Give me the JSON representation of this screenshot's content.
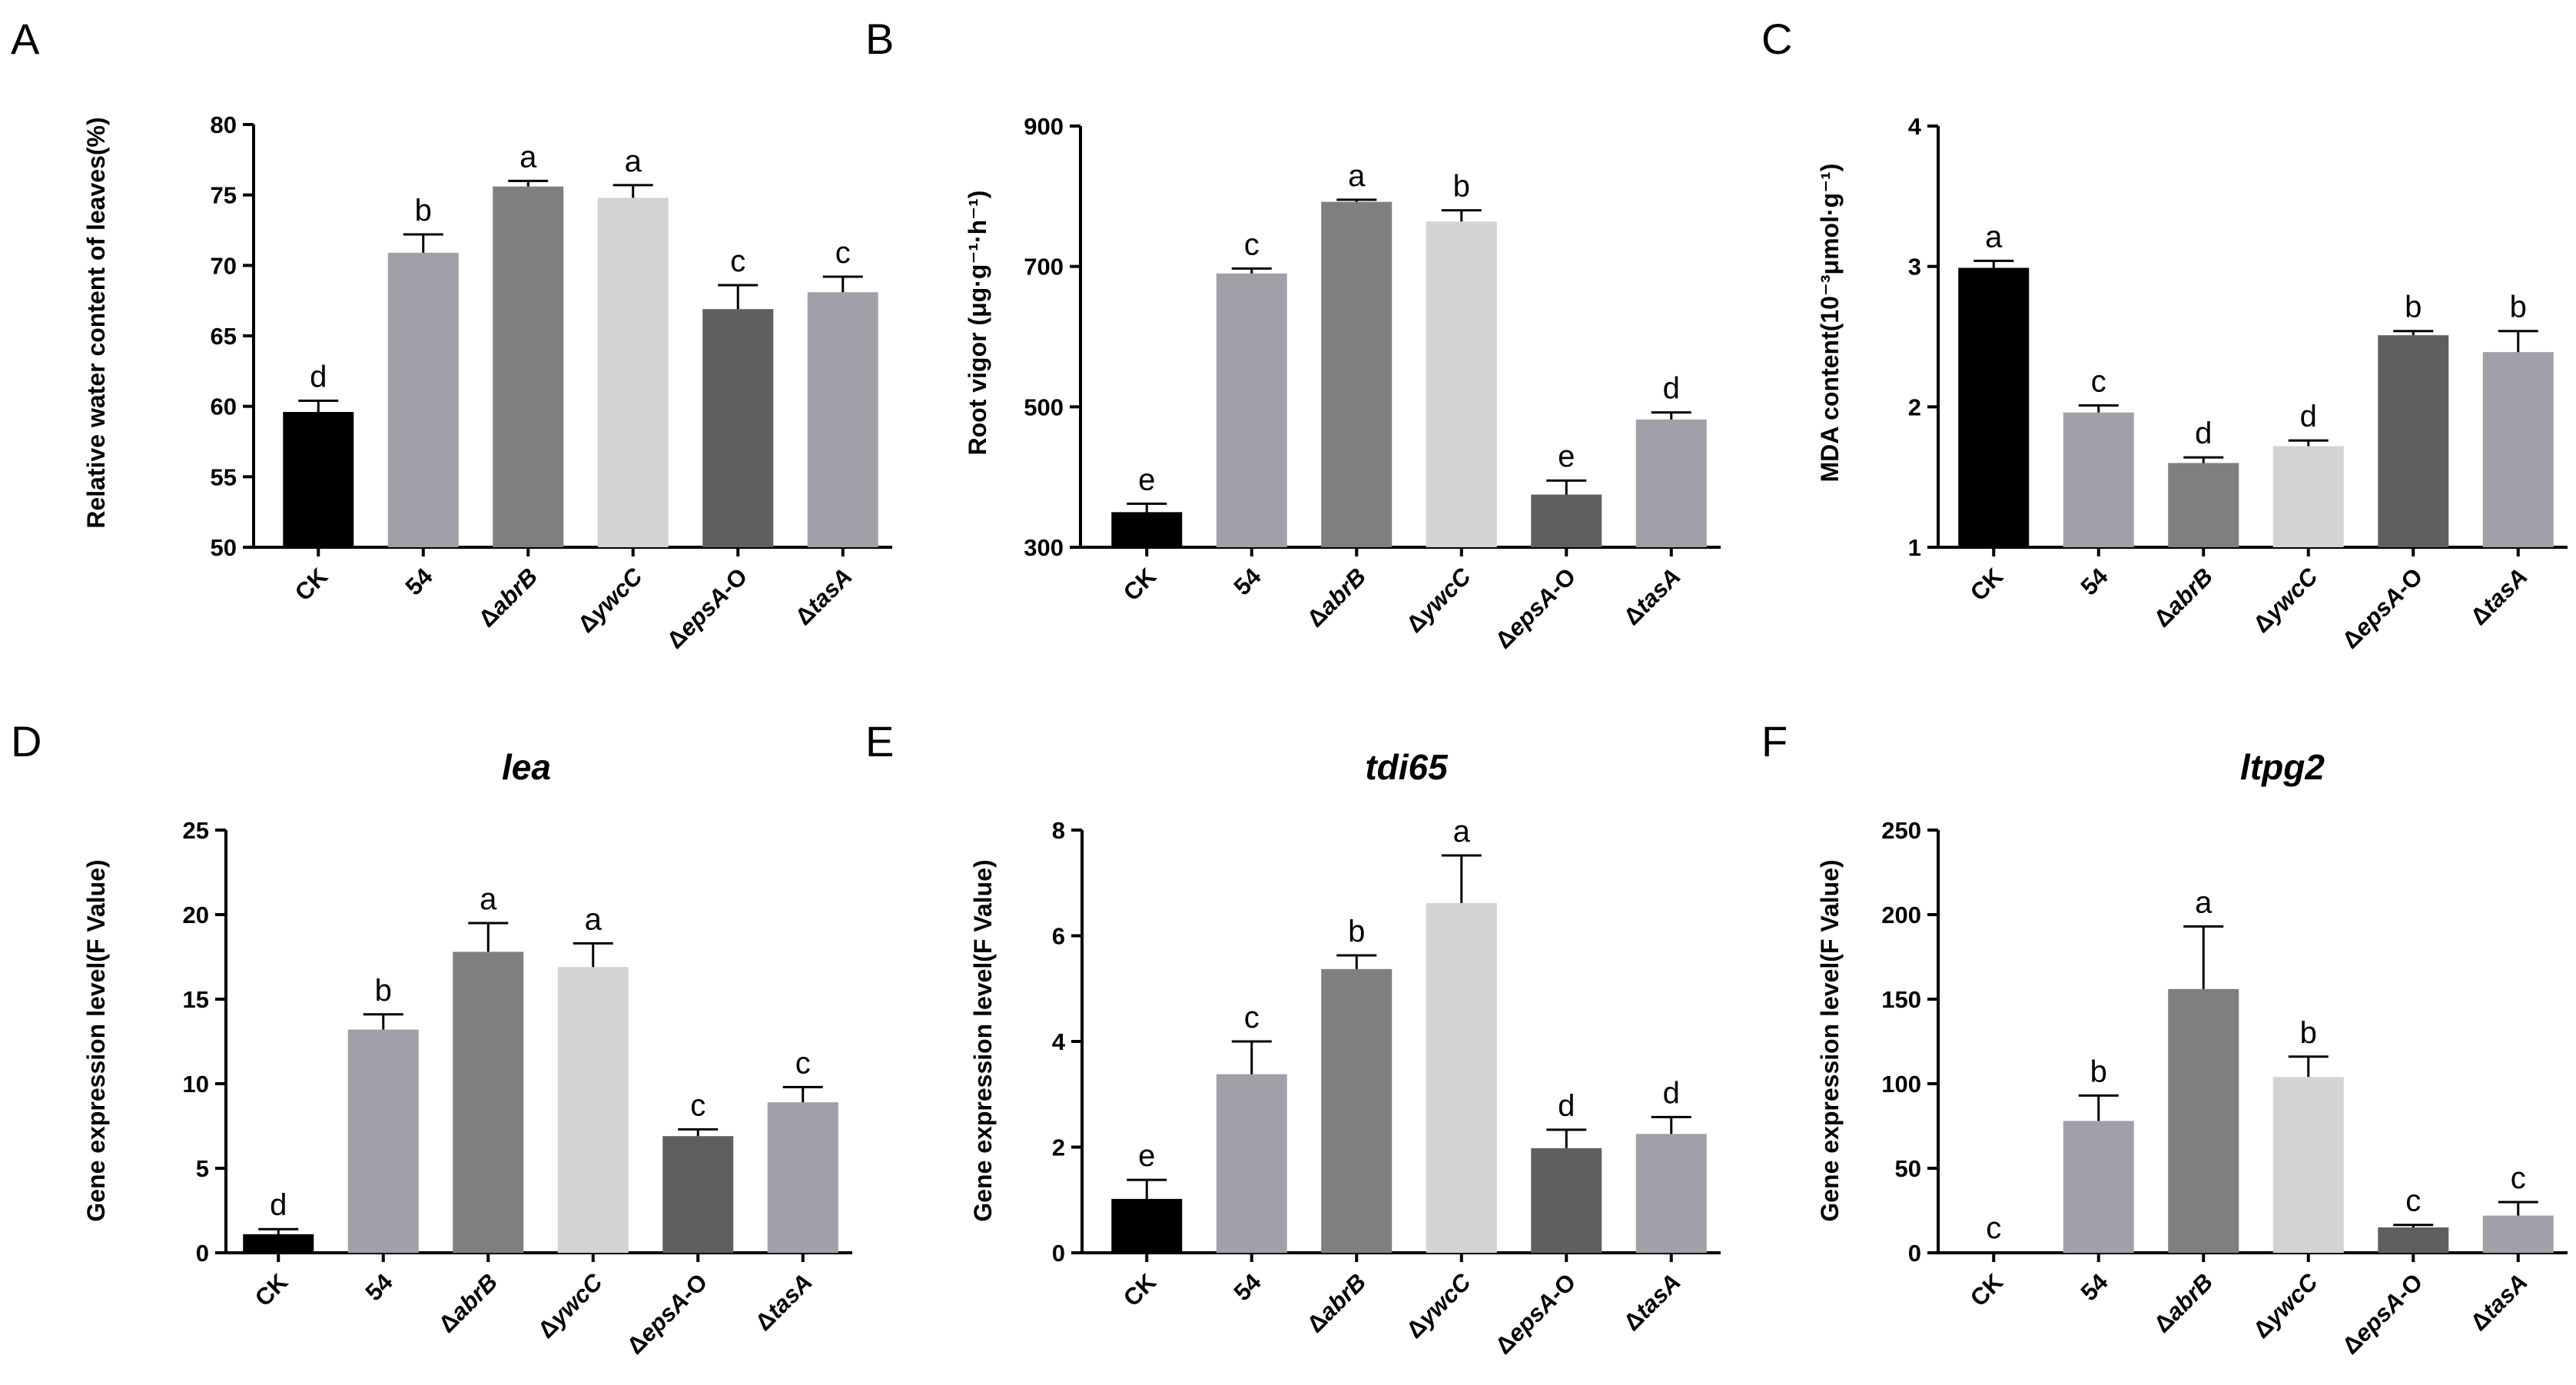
{
  "chart_data": [
    {
      "panel": "A",
      "type": "bar",
      "title": "",
      "xlabel": "",
      "ylabel": "Relative water content of leaves(%)",
      "ylim": [
        50,
        80
      ],
      "yticks": [
        "50",
        "55",
        "60",
        "65",
        "70",
        "75",
        "80"
      ],
      "categories": [
        "CK",
        "54",
        "ΔabrB",
        "ΔywcC",
        "ΔepsA-O",
        "ΔtasA"
      ],
      "values": [
        59.6,
        70.9,
        75.6,
        74.8,
        66.9,
        68.1
      ],
      "errors": [
        0.8,
        1.3,
        0.4,
        0.9,
        1.7,
        1.1
      ],
      "significance": [
        "d",
        "b",
        "a",
        "a",
        "c",
        "c"
      ],
      "colors": [
        "#000000",
        "#a0a0a8",
        "#7f7f7f",
        "#d3d3d3",
        "#5f5f5f",
        "#a0a0a8"
      ]
    },
    {
      "panel": "B",
      "type": "bar",
      "title": "",
      "xlabel": "",
      "ylabel": "Root vigor (μg·g⁻¹·h⁻¹)",
      "ylim": [
        300,
        900
      ],
      "yticks": [
        "300",
        "500",
        "700",
        "900"
      ],
      "categories": [
        "CK",
        "54",
        "ΔabrB",
        "ΔywcC",
        "ΔepsA-O",
        "ΔtasA"
      ],
      "values": [
        350,
        690,
        792,
        764,
        375,
        482
      ],
      "errors": [
        12,
        7,
        3,
        16,
        20,
        10
      ],
      "significance": [
        "e",
        "c",
        "a",
        "b",
        "e",
        "d"
      ],
      "colors": [
        "#000000",
        "#a0a0a8",
        "#7f7f7f",
        "#d3d3d3",
        "#5f5f5f",
        "#a0a0a8"
      ]
    },
    {
      "panel": "C",
      "type": "bar",
      "title": "",
      "xlabel": "",
      "ylabel": "MDA content(10⁻³μmol·g⁻¹)",
      "ylim": [
        1,
        4
      ],
      "yticks": [
        "1",
        "2",
        "3",
        "4"
      ],
      "categories": [
        "CK",
        "54",
        "ΔabrB",
        "ΔywcC",
        "ΔepsA-O",
        "ΔtasA"
      ],
      "values": [
        2.99,
        1.96,
        1.6,
        1.72,
        2.51,
        2.39
      ],
      "errors": [
        0.05,
        0.05,
        0.04,
        0.04,
        0.03,
        0.15
      ],
      "significance": [
        "a",
        "c",
        "d",
        "d",
        "b",
        "b"
      ],
      "colors": [
        "#000000",
        "#a0a0a8",
        "#7f7f7f",
        "#d3d3d3",
        "#5f5f5f",
        "#a0a0a8"
      ]
    },
    {
      "panel": "D",
      "type": "bar",
      "title": "lea",
      "xlabel": "",
      "ylabel": "Gene expression level(F Value)",
      "ylim": [
        0,
        25
      ],
      "yticks": [
        "0",
        "5",
        "10",
        "15",
        "20",
        "25"
      ],
      "categories": [
        "CK",
        "54",
        "ΔabrB",
        "ΔywcC",
        "ΔepsA-O",
        "ΔtasA"
      ],
      "values": [
        1.1,
        13.2,
        17.8,
        16.9,
        6.9,
        8.9
      ],
      "errors": [
        0.3,
        0.9,
        1.7,
        1.4,
        0.4,
        0.9
      ],
      "significance": [
        "d",
        "b",
        "a",
        "a",
        "c",
        "c"
      ],
      "colors": [
        "#000000",
        "#a0a0a8",
        "#7f7f7f",
        "#d3d3d3",
        "#5f5f5f",
        "#a0a0a8"
      ]
    },
    {
      "panel": "E",
      "type": "bar",
      "title": "tdi65",
      "xlabel": "",
      "ylabel": "Gene expression level(F Value)",
      "ylim": [
        0,
        8
      ],
      "yticks": [
        "0",
        "2",
        "4",
        "6",
        "8"
      ],
      "categories": [
        "CK",
        "54",
        "ΔabrB",
        "ΔywcC",
        "ΔepsA-O",
        "ΔtasA"
      ],
      "values": [
        1.02,
        3.38,
        5.37,
        6.62,
        1.98,
        2.25
      ],
      "errors": [
        0.36,
        0.62,
        0.26,
        0.9,
        0.35,
        0.32
      ],
      "significance": [
        "e",
        "c",
        "b",
        "a",
        "d",
        "d"
      ],
      "colors": [
        "#000000",
        "#a0a0a8",
        "#7f7f7f",
        "#d3d3d3",
        "#5f5f5f",
        "#a0a0a8"
      ]
    },
    {
      "panel": "F",
      "type": "bar",
      "title": "ltpg2",
      "xlabel": "",
      "ylabel": "Gene expression level(F Value)",
      "ylim": [
        0,
        250
      ],
      "yticks": [
        "0",
        "50",
        "100",
        "150",
        "200",
        "250"
      ],
      "categories": [
        "CK",
        "54",
        "ΔabrB",
        "ΔywcC",
        "ΔepsA-O",
        "ΔtasA"
      ],
      "values": [
        0.5,
        78,
        156,
        104,
        15,
        22
      ],
      "errors": [
        0,
        15,
        37,
        12,
        1.5,
        8
      ],
      "significance": [
        "c",
        "b",
        "a",
        "b",
        "c",
        "c"
      ],
      "colors": [
        "#000000",
        "#a0a0a8",
        "#7f7f7f",
        "#d3d3d3",
        "#5f5f5f",
        "#a0a0a8"
      ]
    }
  ]
}
